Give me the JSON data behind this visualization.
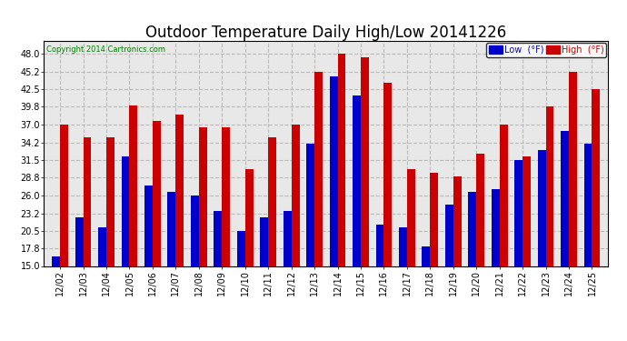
{
  "title": "Outdoor Temperature Daily High/Low 20141226",
  "copyright": "Copyright 2014 Cartronics.com",
  "legend_low": "Low  (°F)",
  "legend_high": "High  (°F)",
  "dates": [
    "12/02",
    "12/03",
    "12/04",
    "12/05",
    "12/06",
    "12/07",
    "12/08",
    "12/09",
    "12/10",
    "12/11",
    "12/12",
    "12/13",
    "12/14",
    "12/15",
    "12/16",
    "12/17",
    "12/18",
    "12/19",
    "12/20",
    "12/21",
    "12/22",
    "12/23",
    "12/24",
    "12/25"
  ],
  "lows": [
    16.5,
    22.5,
    21.0,
    32.0,
    27.5,
    26.5,
    26.0,
    23.5,
    20.5,
    22.5,
    23.5,
    34.0,
    44.5,
    41.5,
    21.5,
    21.0,
    18.0,
    24.5,
    26.5,
    27.0,
    31.5,
    33.0,
    36.0,
    34.0
  ],
  "highs": [
    37.0,
    35.0,
    35.0,
    40.0,
    37.5,
    38.5,
    36.5,
    36.5,
    30.0,
    35.0,
    37.0,
    45.2,
    48.0,
    47.5,
    43.5,
    30.0,
    29.5,
    29.0,
    32.5,
    37.0,
    32.0,
    39.8,
    45.2,
    42.5
  ],
  "low_color": "#0000cc",
  "high_color": "#cc0000",
  "bg_color": "#ffffff",
  "plot_bg_color": "#e8e8e8",
  "grid_color": "#bbbbbb",
  "ylim": [
    15.0,
    50.0
  ],
  "yticks": [
    15.0,
    17.8,
    20.5,
    23.2,
    26.0,
    28.8,
    31.5,
    34.2,
    37.0,
    39.8,
    42.5,
    45.2,
    48.0
  ],
  "title_fontsize": 12,
  "tick_fontsize": 7,
  "bar_width": 0.35,
  "figwidth": 6.9,
  "figheight": 3.75,
  "dpi": 100
}
